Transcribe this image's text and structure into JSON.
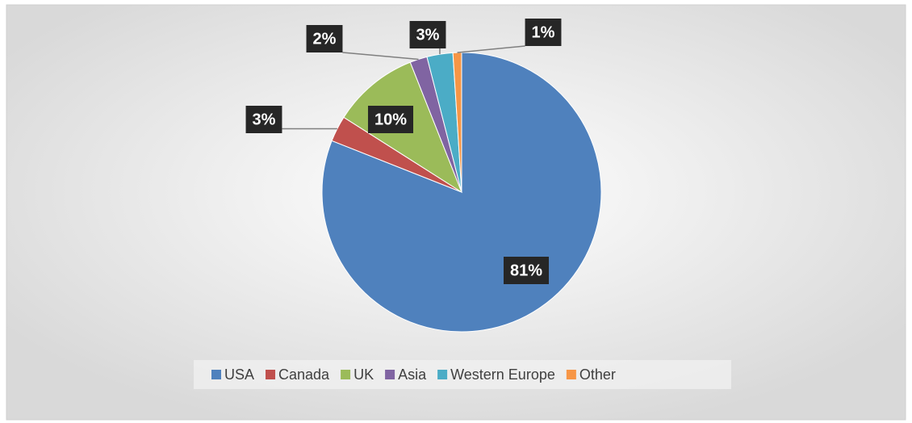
{
  "chart_data": {
    "type": "pie",
    "categories": [
      "USA",
      "Canada",
      "UK",
      "Asia",
      "Western Europe",
      "Other"
    ],
    "values": [
      81,
      3,
      10,
      2,
      3,
      1
    ],
    "value_labels": [
      "81%",
      "3%",
      "10%",
      "2%",
      "3%",
      "1%"
    ],
    "colors": [
      "#4f81bd",
      "#c0504d",
      "#9bbb59",
      "#8064a2",
      "#4bacc6",
      "#f79646"
    ],
    "legend": "bottom"
  }
}
